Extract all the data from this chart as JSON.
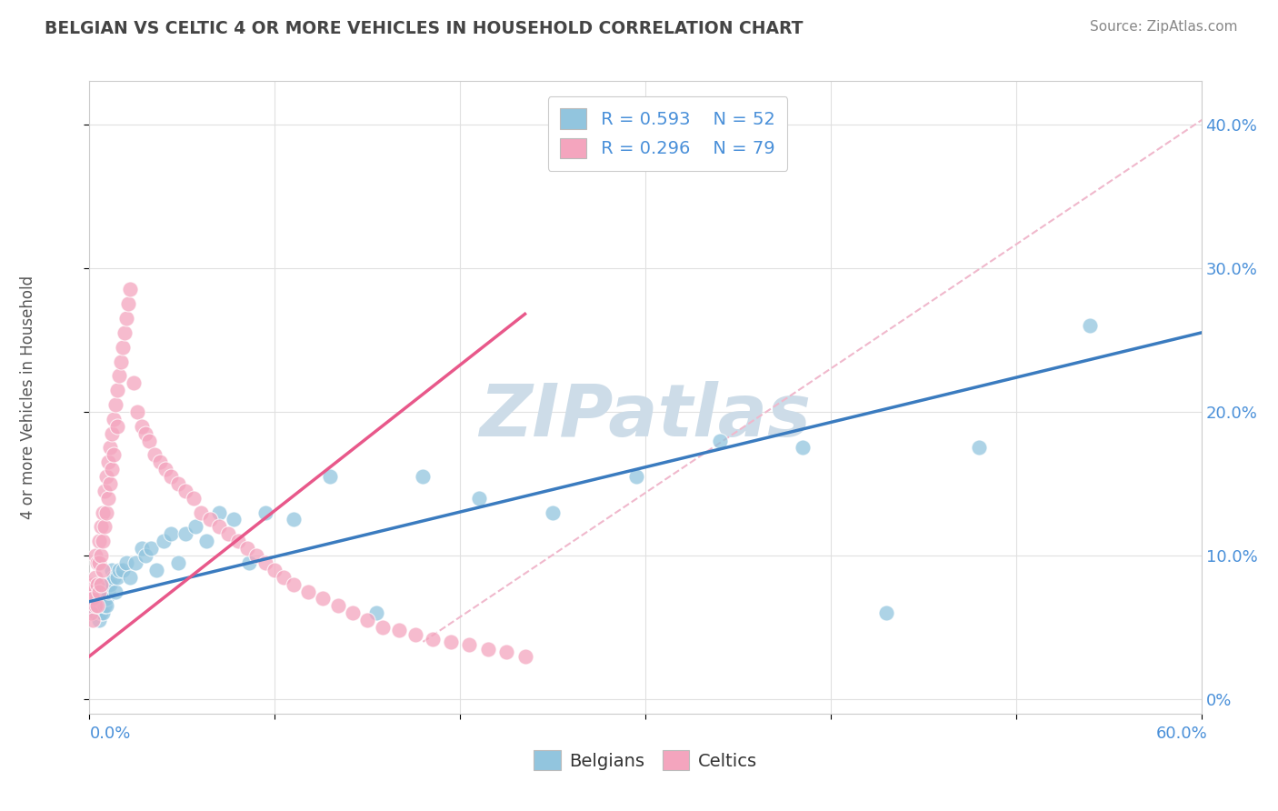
{
  "title": "BELGIAN VS CELTIC 4 OR MORE VEHICLES IN HOUSEHOLD CORRELATION CHART",
  "source_text": "Source: ZipAtlas.com",
  "ylabel": "4 or more Vehicles in Household",
  "ylabel_right_ticks": [
    "0%",
    "10.0%",
    "20.0%",
    "30.0%",
    "40.0%"
  ],
  "ylabel_right_vals": [
    0.0,
    0.1,
    0.2,
    0.3,
    0.4
  ],
  "xlim": [
    0.0,
    0.6
  ],
  "ylim": [
    -0.01,
    0.43
  ],
  "belgian_R": 0.593,
  "belgian_N": 52,
  "celtic_R": 0.296,
  "celtic_N": 79,
  "blue_color": "#92c5de",
  "pink_color": "#f4a5be",
  "blue_line_color": "#3a7bbf",
  "pink_line_color": "#e8588a",
  "dashed_line_color": "#f0b8cc",
  "watermark_color": "#cddce8",
  "title_color": "#444444",
  "axis_label_color": "#4a90d9",
  "background_color": "#ffffff",
  "grid_color": "#e0e0e0",
  "belgian_x": [
    0.002,
    0.003,
    0.003,
    0.004,
    0.005,
    0.005,
    0.006,
    0.006,
    0.007,
    0.007,
    0.008,
    0.008,
    0.009,
    0.009,
    0.01,
    0.01,
    0.011,
    0.012,
    0.013,
    0.014,
    0.015,
    0.016,
    0.018,
    0.02,
    0.022,
    0.025,
    0.028,
    0.03,
    0.033,
    0.036,
    0.04,
    0.044,
    0.048,
    0.052,
    0.057,
    0.063,
    0.07,
    0.078,
    0.086,
    0.095,
    0.11,
    0.13,
    0.155,
    0.18,
    0.21,
    0.25,
    0.295,
    0.34,
    0.385,
    0.43,
    0.48,
    0.54
  ],
  "belgian_y": [
    0.065,
    0.06,
    0.075,
    0.07,
    0.055,
    0.08,
    0.06,
    0.07,
    0.06,
    0.075,
    0.065,
    0.08,
    0.07,
    0.065,
    0.075,
    0.08,
    0.08,
    0.09,
    0.085,
    0.075,
    0.085,
    0.09,
    0.09,
    0.095,
    0.085,
    0.095,
    0.105,
    0.1,
    0.105,
    0.09,
    0.11,
    0.115,
    0.095,
    0.115,
    0.12,
    0.11,
    0.13,
    0.125,
    0.095,
    0.13,
    0.125,
    0.155,
    0.06,
    0.155,
    0.14,
    0.13,
    0.155,
    0.18,
    0.175,
    0.06,
    0.175,
    0.26
  ],
  "celtic_x": [
    0.001,
    0.001,
    0.002,
    0.002,
    0.002,
    0.003,
    0.003,
    0.003,
    0.004,
    0.004,
    0.004,
    0.005,
    0.005,
    0.005,
    0.006,
    0.006,
    0.006,
    0.007,
    0.007,
    0.007,
    0.008,
    0.008,
    0.009,
    0.009,
    0.01,
    0.01,
    0.011,
    0.011,
    0.012,
    0.012,
    0.013,
    0.013,
    0.014,
    0.015,
    0.015,
    0.016,
    0.017,
    0.018,
    0.019,
    0.02,
    0.021,
    0.022,
    0.024,
    0.026,
    0.028,
    0.03,
    0.032,
    0.035,
    0.038,
    0.041,
    0.044,
    0.048,
    0.052,
    0.056,
    0.06,
    0.065,
    0.07,
    0.075,
    0.08,
    0.085,
    0.09,
    0.095,
    0.1,
    0.105,
    0.11,
    0.118,
    0.126,
    0.134,
    0.142,
    0.15,
    0.158,
    0.167,
    0.176,
    0.185,
    0.195,
    0.205,
    0.215,
    0.225,
    0.235
  ],
  "celtic_y": [
    0.075,
    0.06,
    0.08,
    0.07,
    0.055,
    0.1,
    0.085,
    0.065,
    0.095,
    0.08,
    0.065,
    0.11,
    0.095,
    0.075,
    0.12,
    0.1,
    0.08,
    0.13,
    0.11,
    0.09,
    0.145,
    0.12,
    0.155,
    0.13,
    0.165,
    0.14,
    0.175,
    0.15,
    0.185,
    0.16,
    0.195,
    0.17,
    0.205,
    0.215,
    0.19,
    0.225,
    0.235,
    0.245,
    0.255,
    0.265,
    0.275,
    0.285,
    0.22,
    0.2,
    0.19,
    0.185,
    0.18,
    0.17,
    0.165,
    0.16,
    0.155,
    0.15,
    0.145,
    0.14,
    0.13,
    0.125,
    0.12,
    0.115,
    0.11,
    0.105,
    0.1,
    0.095,
    0.09,
    0.085,
    0.08,
    0.075,
    0.07,
    0.065,
    0.06,
    0.055,
    0.05,
    0.048,
    0.045,
    0.042,
    0.04,
    0.038,
    0.035,
    0.033,
    0.03
  ]
}
